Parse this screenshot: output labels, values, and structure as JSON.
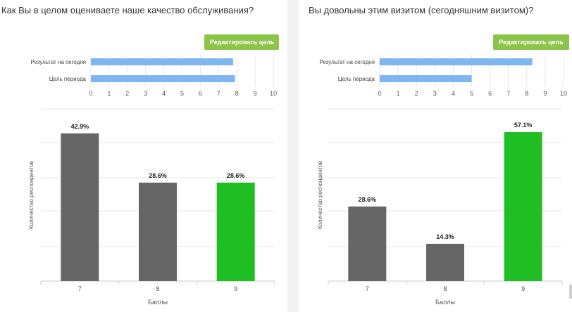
{
  "left_panel": {
    "title": "Как Вы в целом оцениваете наше качество обслуживания?",
    "edit_button": "Редактировать цель"
  },
  "right_panel": {
    "title": "Вы довольны этим визитом (сегодняшним визитом)?",
    "edit_button": "Редактировать цель"
  },
  "colors": {
    "goal_bar": "#7fb6ef",
    "response_bar": "#666666",
    "highlight_bar": "#1fbf24",
    "edit_button": "#8cc34b"
  },
  "chart_data": [
    {
      "type": "bar",
      "orientation": "horizontal",
      "panel": "left",
      "categories": [
        "Результат на сегодня",
        "Цель периода"
      ],
      "values": [
        7.8,
        7.9
      ],
      "xlim": [
        0,
        10
      ],
      "xticks": [
        0,
        1,
        2,
        3,
        4,
        5,
        6,
        7,
        8,
        9,
        10
      ],
      "grid": true
    },
    {
      "type": "bar",
      "panel": "left",
      "categories": [
        "7",
        "8",
        "9"
      ],
      "values": [
        42.9,
        28.6,
        28.6
      ],
      "data_labels": [
        "42.9%",
        "28.6%",
        "28.6%"
      ],
      "bar_colors": [
        "#666666",
        "#666666",
        "#1fbf24"
      ],
      "xlabel": "Баллы",
      "ylabel": "Количество респондентов",
      "ylim": [
        0,
        50
      ],
      "grid": true
    },
    {
      "type": "bar",
      "orientation": "horizontal",
      "panel": "right",
      "categories": [
        "Результат на сегодня",
        "Цель периода"
      ],
      "values": [
        8.3,
        5.0
      ],
      "xlim": [
        0,
        10
      ],
      "xticks": [
        0,
        1,
        2,
        3,
        4,
        5,
        6,
        7,
        8,
        9,
        10
      ],
      "grid": true
    },
    {
      "type": "bar",
      "panel": "right",
      "categories": [
        "7",
        "8",
        "9"
      ],
      "values": [
        28.6,
        14.3,
        57.1
      ],
      "data_labels": [
        "28.6%",
        "14.3%",
        "57.1%"
      ],
      "bar_colors": [
        "#666666",
        "#666666",
        "#1fbf24"
      ],
      "xlabel": "Баллы",
      "ylabel": "Количество респондентов",
      "ylim": [
        0,
        66
      ],
      "grid": true
    }
  ]
}
